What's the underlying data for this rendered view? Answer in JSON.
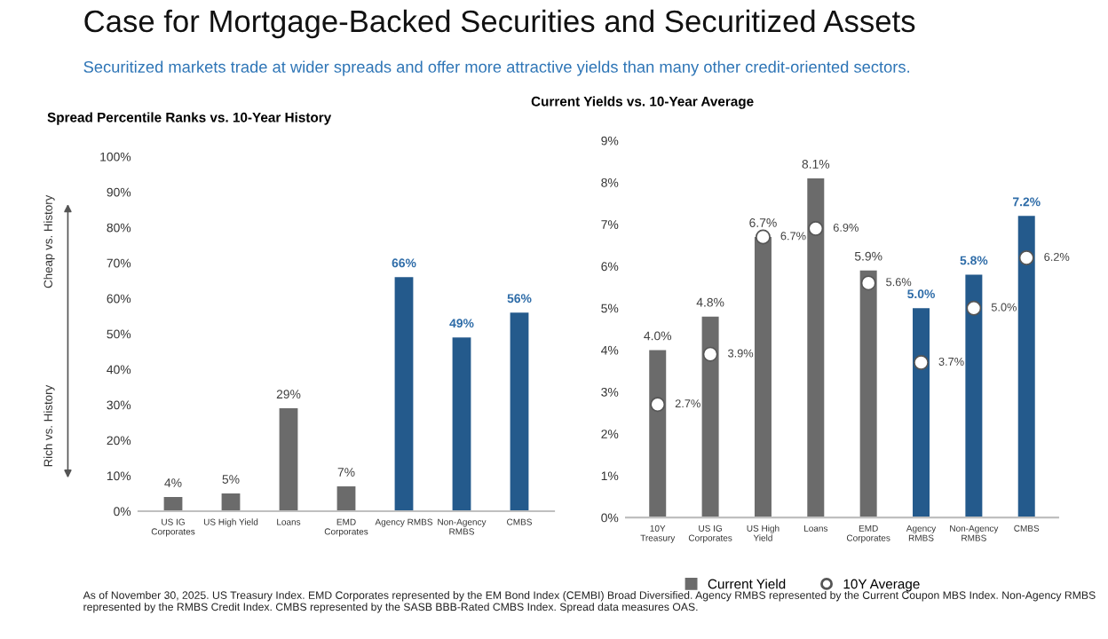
{
  "chart_data": [
    {
      "type": "other",
      "title": "Case for Mortgage-Backed Securities and Securitized Assets",
      "subtitle": "Securitized markets trade at wider spreads and offer more attractive yields than many other credit-oriented sectors.",
      "annotations": [
        "As of November 30, 2025. US Treasury Index. EMD Corporates represented by the EM Bond Index (CEMBI) Broad Diversified. Agency RMBS represented by the Current Coupon MBS Index. Non-Agency RMBS represented by the RMBS Credit Index. CMBS represented by the SASB BBB-Rated CMBS Index. Spread data measures OAS."
      ]
    },
    {
      "type": "bar",
      "title": "Spread Percentile Ranks vs. 10-Year History",
      "categories": [
        "US IG Corporates",
        "US High Yield",
        "Loans",
        "EMD Corporates",
        "Agency RMBS",
        "Non-Agency RMBS",
        "CMBS"
      ],
      "values": [
        4,
        5,
        29,
        7,
        66,
        49,
        56
      ],
      "colors": [
        "#6b6b6b",
        "#6b6b6b",
        "#6b6b6b",
        "#6b6b6b",
        "#245a8c",
        "#245a8c",
        "#245a8c"
      ],
      "value_labels": [
        "4%",
        "5%",
        "29%",
        "7%",
        "66%",
        "49%",
        "56%"
      ],
      "ylim": [
        0,
        100
      ],
      "yticks": [
        {
          "value": 0,
          "label": "0%"
        },
        {
          "value": 10,
          "label": "10%"
        },
        {
          "value": 20,
          "label": "20%"
        },
        {
          "value": 30,
          "label": "30%"
        },
        {
          "value": 40,
          "label": "40%"
        },
        {
          "value": 50,
          "label": "50%"
        },
        {
          "value": 60,
          "label": "60%"
        },
        {
          "value": 70,
          "label": "70%"
        },
        {
          "value": 80,
          "label": "80%"
        },
        {
          "value": 90,
          "label": "90%"
        },
        {
          "value": 100,
          "label": "100%"
        }
      ],
      "annotations": [
        "Cheap vs. History",
        "Rich vs. History"
      ],
      "grid": false,
      "legend": false
    },
    {
      "type": "bar",
      "title": "Current Yields vs. 10-Year Average",
      "categories": [
        "10Y Treasury",
        "US IG Corporates",
        "US High Yield",
        "Loans",
        "EMD Corporates",
        "Agency RMBS",
        "Non-Agency RMBS",
        "CMBS"
      ],
      "series": [
        {
          "name": "Current Yield",
          "type": "bar",
          "color": "#6b6b6b",
          "colors": [
            "#6b6b6b",
            "#6b6b6b",
            "#6b6b6b",
            "#6b6b6b",
            "#6b6b6b",
            "#245a8c",
            "#245a8c",
            "#245a8c"
          ],
          "values": [
            4.0,
            4.8,
            6.7,
            8.1,
            5.9,
            5.0,
            5.8,
            7.2
          ],
          "value_labels": [
            "4.0%",
            "4.8%",
            "6.7%",
            "8.1%",
            "5.9%",
            "5.0%",
            "5.8%",
            "7.2%"
          ]
        },
        {
          "name": "10Y Average",
          "type": "scatter",
          "color": "#ffffff",
          "marker": "circle",
          "values": [
            2.7,
            3.9,
            6.7,
            6.9,
            5.6,
            3.7,
            5.0,
            6.2
          ],
          "value_labels": [
            "2.7%",
            "3.9%",
            "6.7%",
            "6.9%",
            "5.6%",
            "3.7%",
            "5.0%",
            "6.2%"
          ]
        }
      ],
      "ylim": [
        0,
        9
      ],
      "yticks": [
        {
          "value": 0,
          "label": "0%"
        },
        {
          "value": 1,
          "label": "1%"
        },
        {
          "value": 2,
          "label": "2%"
        },
        {
          "value": 3,
          "label": "3%"
        },
        {
          "value": 4,
          "label": "4%"
        },
        {
          "value": 5,
          "label": "5%"
        },
        {
          "value": 6,
          "label": "6%"
        },
        {
          "value": 7,
          "label": "7%"
        },
        {
          "value": 8,
          "label": "8%"
        },
        {
          "value": 9,
          "label": "9%"
        }
      ],
      "grid": false,
      "legend": "bottom"
    }
  ]
}
